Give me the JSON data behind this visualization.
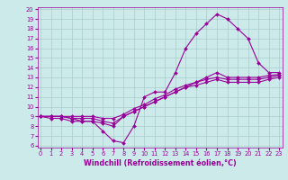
{
  "xlabel": "Windchill (Refroidissement éolien,°C)",
  "bg_color": "#cceaea",
  "line_color": "#990099",
  "grid_color": "#aacccc",
  "x_hours": [
    0,
    1,
    2,
    3,
    4,
    5,
    6,
    7,
    8,
    9,
    10,
    11,
    12,
    13,
    14,
    15,
    16,
    17,
    18,
    19,
    20,
    21,
    22,
    23
  ],
  "line1": [
    9,
    9,
    9,
    8.8,
    8.5,
    8.5,
    7.5,
    6.5,
    6.3,
    8,
    11,
    11.5,
    11.5,
    13.5,
    16,
    17.5,
    18.5,
    19.5,
    19,
    18,
    17,
    14.5,
    13.5,
    13.5
  ],
  "line2": [
    9,
    8.8,
    8.8,
    8.5,
    8.5,
    8.5,
    8.3,
    8.0,
    9,
    9.5,
    10,
    10.5,
    11,
    11.5,
    12,
    12.5,
    13,
    13.5,
    13,
    13,
    13,
    13,
    13.2,
    13.3
  ],
  "line3": [
    9,
    9,
    9,
    8.8,
    8.8,
    8.8,
    8.5,
    8.3,
    9.0,
    9.5,
    10,
    10.5,
    11,
    11.5,
    12,
    12.2,
    12.5,
    12.8,
    12.5,
    12.5,
    12.5,
    12.5,
    12.8,
    13.0
  ],
  "line4": [
    9,
    9,
    9,
    9,
    9,
    9,
    8.8,
    8.8,
    9.2,
    9.8,
    10.2,
    10.8,
    11.2,
    11.8,
    12.2,
    12.5,
    12.8,
    13.0,
    12.8,
    12.8,
    12.8,
    12.8,
    13.0,
    13.2
  ],
  "xlim": [
    0,
    23
  ],
  "ylim": [
    6,
    20
  ],
  "yticks": [
    6,
    7,
    8,
    9,
    10,
    11,
    12,
    13,
    14,
    15,
    16,
    17,
    18,
    19,
    20
  ],
  "xticks": [
    0,
    1,
    2,
    3,
    4,
    5,
    6,
    7,
    8,
    9,
    10,
    11,
    12,
    13,
    14,
    15,
    16,
    17,
    18,
    19,
    20,
    21,
    22,
    23
  ],
  "tick_fontsize": 4.8,
  "xlabel_fontsize": 5.8,
  "markersize": 2.0
}
